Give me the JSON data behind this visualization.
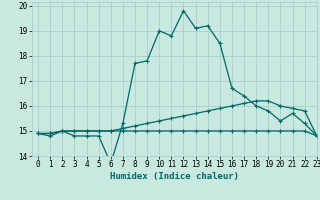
{
  "xlabel": "Humidex (Indice chaleur)",
  "xlim": [
    -0.5,
    23
  ],
  "ylim": [
    14,
    20.15
  ],
  "xticks": [
    0,
    1,
    2,
    3,
    4,
    5,
    6,
    7,
    8,
    9,
    10,
    11,
    12,
    13,
    14,
    15,
    16,
    17,
    18,
    19,
    20,
    21,
    22,
    23
  ],
  "yticks": [
    14,
    15,
    16,
    17,
    18,
    19,
    20
  ],
  "background_color": "#c8e8e0",
  "grid_color": "#a0ccc4",
  "line_color": "#006868",
  "line1_y": [
    14.9,
    14.8,
    15.0,
    14.8,
    14.8,
    14.8,
    13.7,
    15.3,
    17.7,
    17.8,
    19.0,
    18.8,
    19.8,
    19.1,
    19.2,
    18.5,
    16.7,
    16.4,
    16.0,
    15.8,
    15.4,
    15.7,
    15.3,
    14.8
  ],
  "line2_y": [
    14.9,
    14.9,
    15.0,
    15.0,
    15.0,
    15.0,
    15.0,
    15.1,
    15.2,
    15.3,
    15.4,
    15.5,
    15.6,
    15.7,
    15.8,
    15.9,
    16.0,
    16.1,
    16.2,
    16.2,
    16.0,
    15.9,
    15.8,
    14.8
  ],
  "line3_y": [
    14.9,
    14.9,
    15.0,
    15.0,
    15.0,
    15.0,
    15.0,
    15.0,
    15.0,
    15.0,
    15.0,
    15.0,
    15.0,
    15.0,
    15.0,
    15.0,
    15.0,
    15.0,
    15.0,
    15.0,
    15.0,
    15.0,
    15.0,
    14.8
  ],
  "markersize": 3,
  "linewidth": 0.9,
  "tick_fontsize": 5.5,
  "label_fontsize": 6.5
}
